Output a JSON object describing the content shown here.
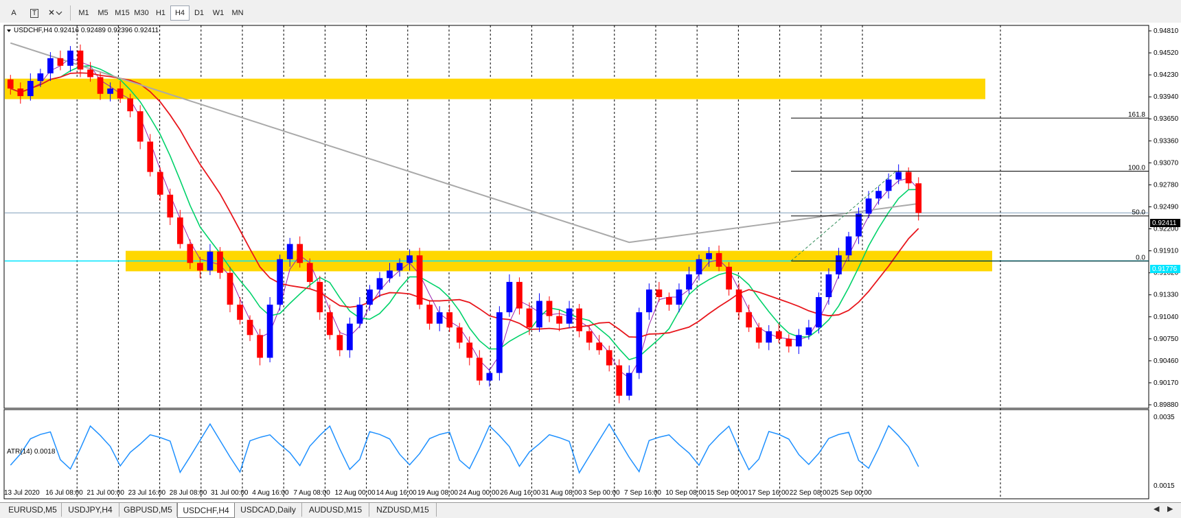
{
  "toolbar": {
    "tools": [
      {
        "label": "A",
        "icon": "text-tool-icon"
      },
      {
        "label": "T",
        "icon": "text-label-tool-icon"
      },
      {
        "label": "",
        "icon": "shapes-tool-icon"
      }
    ],
    "timeframes": [
      "M1",
      "M5",
      "M15",
      "M30",
      "H1",
      "H4",
      "D1",
      "W1",
      "MN"
    ],
    "active_timeframe": "H4"
  },
  "chart": {
    "header": "USDCHF,H4  0.92416 0.92489 0.92396 0.92411",
    "bid_label": "0.92411",
    "level_label": "0.91776",
    "fib_labels": {
      "f1618": "161.8",
      "f100": "100.0",
      "f50": "50.0",
      "f0": "0.0"
    },
    "colors": {
      "bull": "#0000ff",
      "bear": "#ff0000",
      "ma_red": "#e8161c",
      "ma_green": "#00d26a",
      "ma_purple": "#9a1fb0",
      "ma_gray": "#a9a9a9",
      "zone": "#ffd700",
      "level_line": "#00e5ff",
      "atr": "#1e90ff"
    }
  },
  "indicator": {
    "label": "ATR(14) 0.0018"
  },
  "tabs": [
    "EURUSD,M5",
    "USDJPY,H4",
    "GBPUSD,M5",
    "USDCHF,H4",
    "USDCAD,Daily",
    "AUDUSD,M15",
    "NZDUSD,M15"
  ],
  "active_tab": "USDCHF,H4",
  "chart_data": {
    "type": "candlestick",
    "symbol": "USDCHF",
    "timeframe": "H4",
    "ohlc_last": {
      "open": 0.92416,
      "high": 0.92489,
      "low": 0.92396,
      "close": 0.92411
    },
    "x_tick_labels": [
      "13 Jul 2020",
      "16 Jul 08:00",
      "21 Jul 00:00",
      "23 Jul 16:00",
      "28 Jul 08:00",
      "31 Jul 00:00",
      "4 Aug 16:00",
      "7 Aug 08:00",
      "12 Aug 00:00",
      "14 Aug 16:00",
      "19 Aug 08:00",
      "24 Aug 00:00",
      "26 Aug 16:00",
      "31 Aug 08:00",
      "3 Sep 00:00",
      "7 Sep 16:00",
      "10 Sep 08:00",
      "15 Sep 00:00",
      "17 Sep 16:00",
      "22 Sep 08:00",
      "25 Sep 00:00"
    ],
    "y_tick_labels": [
      "0.94810",
      "0.94520",
      "0.94230",
      "0.93940",
      "0.93650",
      "0.93360",
      "0.93070",
      "0.92780",
      "0.92490",
      "0.92200",
      "0.91910",
      "0.91620",
      "0.91330",
      "0.91040",
      "0.90750",
      "0.90460",
      "0.90170",
      "0.89880"
    ],
    "y_range": [
      0.8988,
      0.9481
    ],
    "closes": [
      0.9405,
      0.9395,
      0.9415,
      0.9425,
      0.9445,
      0.9435,
      0.9455,
      0.943,
      0.942,
      0.9398,
      0.9405,
      0.9392,
      0.9375,
      0.9335,
      0.9295,
      0.9265,
      0.9235,
      0.92,
      0.9175,
      0.9165,
      0.919,
      0.9162,
      0.912,
      0.91,
      0.908,
      0.905,
      0.912,
      0.918,
      0.92,
      0.9175,
      0.915,
      0.911,
      0.908,
      0.906,
      0.9095,
      0.912,
      0.914,
      0.9155,
      0.9165,
      0.9175,
      0.9185,
      0.912,
      0.9095,
      0.911,
      0.909,
      0.907,
      0.905,
      0.902,
      0.903,
      0.911,
      0.915,
      0.9115,
      0.909,
      0.9125,
      0.9105,
      0.9095,
      0.9115,
      0.9085,
      0.907,
      0.906,
      0.904,
      0.9,
      0.903,
      0.911,
      0.914,
      0.913,
      0.912,
      0.914,
      0.916,
      0.918,
      0.9188,
      0.917,
      0.914,
      0.911,
      0.909,
      0.907,
      0.9085,
      0.9075,
      0.9065,
      0.908,
      0.909,
      0.913,
      0.916,
      0.9185,
      0.921,
      0.924,
      0.926,
      0.927,
      0.9285,
      0.9295,
      0.928,
      0.9241
    ],
    "series": [
      {
        "name": "ATR(14)",
        "y_range": [
          0.0012,
          0.0036
        ],
        "y_tick_labels": [
          "0.0035",
          "0.0015"
        ],
        "current": 0.0018
      }
    ],
    "horizontal_zones": [
      {
        "from": 0.9391,
        "to": 0.9418
      },
      {
        "from": 0.9164,
        "to": 0.9191
      }
    ],
    "horizontal_levels": [
      {
        "price": 0.91776,
        "label": "0.91776"
      },
      {
        "price": 0.92411,
        "label": "0.92411"
      }
    ],
    "fibonacci": [
      {
        "level": "0.0",
        "price": 0.91776
      },
      {
        "level": "50.0",
        "price": 0.9237
      },
      {
        "level": "100.0",
        "price": 0.9296
      },
      {
        "level": "161.8",
        "price": 0.9366
      }
    ]
  }
}
